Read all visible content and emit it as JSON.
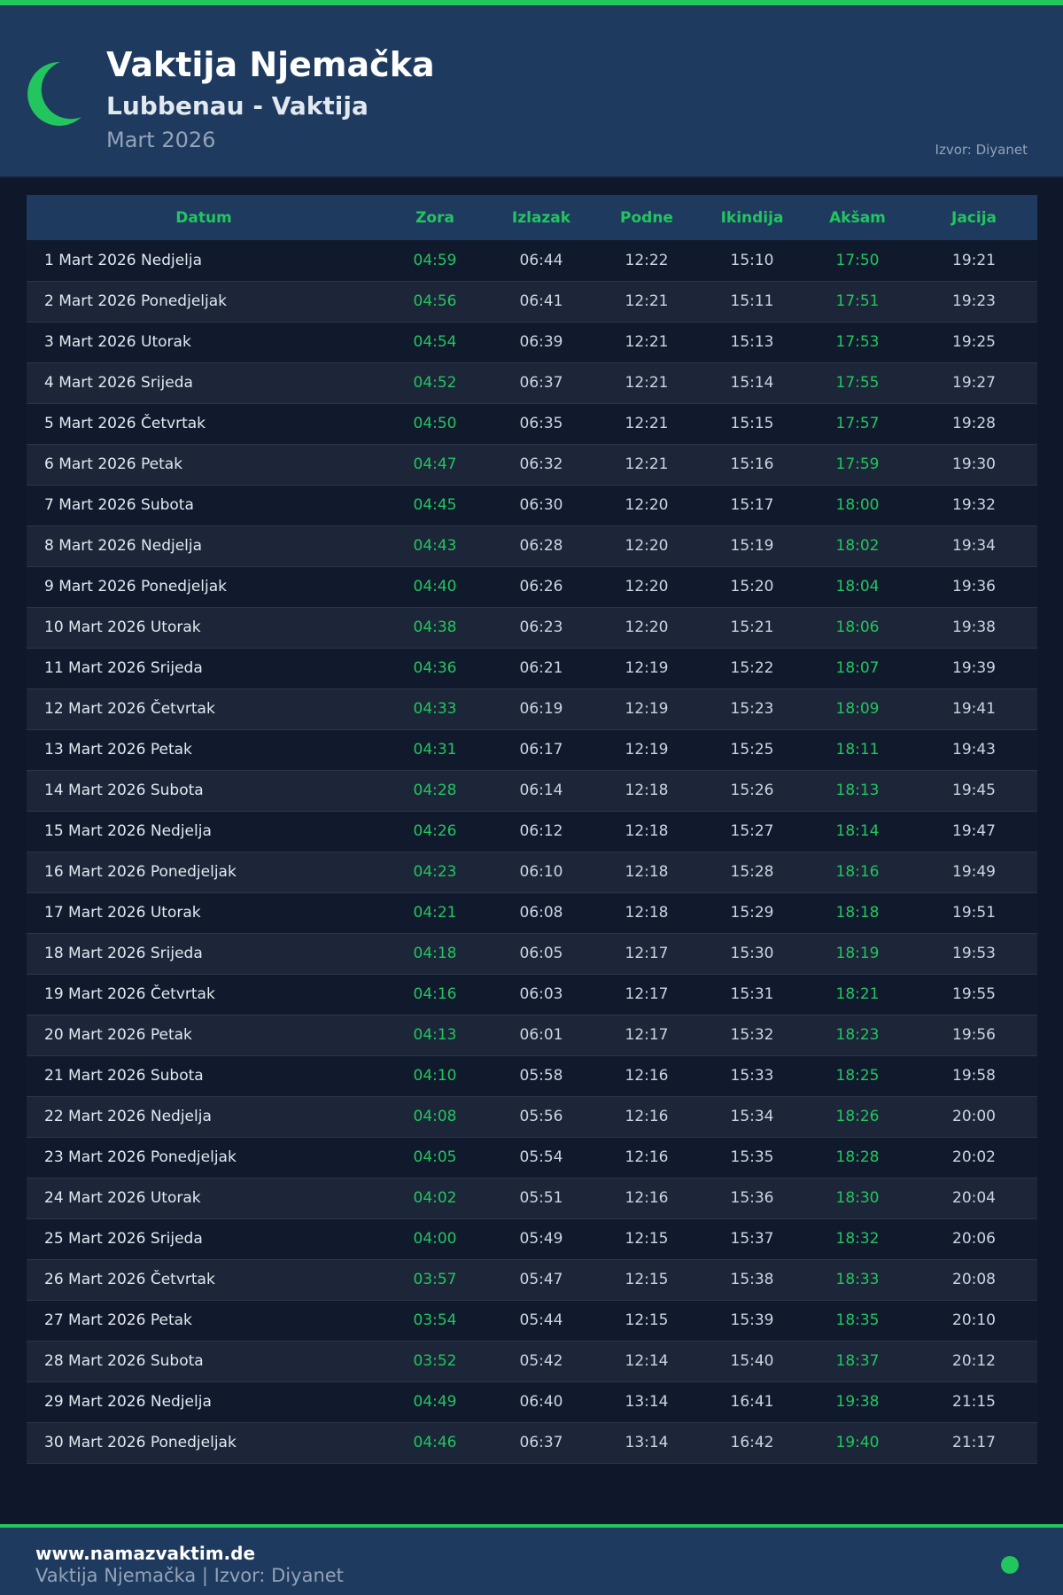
{
  "header": {
    "title": "Vaktija Njemačka",
    "subtitle": "Lubbenau - Vaktija",
    "month": "Mart 2026",
    "source": "Izvor: Diyanet",
    "icon": "crescent-moon-icon"
  },
  "colors": {
    "accent": "#22c55e",
    "header_bg": "#1e3a5f",
    "page_bg": "#0f172a"
  },
  "table": {
    "columns": [
      "Datum",
      "Zora",
      "Izlazak",
      "Podne",
      "Ikindija",
      "Akšam",
      "Jacija"
    ],
    "rows": [
      [
        "1 Mart 2026 Nedjelja",
        "04:59",
        "06:44",
        "12:22",
        "15:10",
        "17:50",
        "19:21"
      ],
      [
        "2 Mart 2026 Ponedjeljak",
        "04:56",
        "06:41",
        "12:21",
        "15:11",
        "17:51",
        "19:23"
      ],
      [
        "3 Mart 2026 Utorak",
        "04:54",
        "06:39",
        "12:21",
        "15:13",
        "17:53",
        "19:25"
      ],
      [
        "4 Mart 2026 Srijeda",
        "04:52",
        "06:37",
        "12:21",
        "15:14",
        "17:55",
        "19:27"
      ],
      [
        "5 Mart 2026 Četvrtak",
        "04:50",
        "06:35",
        "12:21",
        "15:15",
        "17:57",
        "19:28"
      ],
      [
        "6 Mart 2026 Petak",
        "04:47",
        "06:32",
        "12:21",
        "15:16",
        "17:59",
        "19:30"
      ],
      [
        "7 Mart 2026 Subota",
        "04:45",
        "06:30",
        "12:20",
        "15:17",
        "18:00",
        "19:32"
      ],
      [
        "8 Mart 2026 Nedjelja",
        "04:43",
        "06:28",
        "12:20",
        "15:19",
        "18:02",
        "19:34"
      ],
      [
        "9 Mart 2026 Ponedjeljak",
        "04:40",
        "06:26",
        "12:20",
        "15:20",
        "18:04",
        "19:36"
      ],
      [
        "10 Mart 2026 Utorak",
        "04:38",
        "06:23",
        "12:20",
        "15:21",
        "18:06",
        "19:38"
      ],
      [
        "11 Mart 2026 Srijeda",
        "04:36",
        "06:21",
        "12:19",
        "15:22",
        "18:07",
        "19:39"
      ],
      [
        "12 Mart 2026 Četvrtak",
        "04:33",
        "06:19",
        "12:19",
        "15:23",
        "18:09",
        "19:41"
      ],
      [
        "13 Mart 2026 Petak",
        "04:31",
        "06:17",
        "12:19",
        "15:25",
        "18:11",
        "19:43"
      ],
      [
        "14 Mart 2026 Subota",
        "04:28",
        "06:14",
        "12:18",
        "15:26",
        "18:13",
        "19:45"
      ],
      [
        "15 Mart 2026 Nedjelja",
        "04:26",
        "06:12",
        "12:18",
        "15:27",
        "18:14",
        "19:47"
      ],
      [
        "16 Mart 2026 Ponedjeljak",
        "04:23",
        "06:10",
        "12:18",
        "15:28",
        "18:16",
        "19:49"
      ],
      [
        "17 Mart 2026 Utorak",
        "04:21",
        "06:08",
        "12:18",
        "15:29",
        "18:18",
        "19:51"
      ],
      [
        "18 Mart 2026 Srijeda",
        "04:18",
        "06:05",
        "12:17",
        "15:30",
        "18:19",
        "19:53"
      ],
      [
        "19 Mart 2026 Četvrtak",
        "04:16",
        "06:03",
        "12:17",
        "15:31",
        "18:21",
        "19:55"
      ],
      [
        "20 Mart 2026 Petak",
        "04:13",
        "06:01",
        "12:17",
        "15:32",
        "18:23",
        "19:56"
      ],
      [
        "21 Mart 2026 Subota",
        "04:10",
        "05:58",
        "12:16",
        "15:33",
        "18:25",
        "19:58"
      ],
      [
        "22 Mart 2026 Nedjelja",
        "04:08",
        "05:56",
        "12:16",
        "15:34",
        "18:26",
        "20:00"
      ],
      [
        "23 Mart 2026 Ponedjeljak",
        "04:05",
        "05:54",
        "12:16",
        "15:35",
        "18:28",
        "20:02"
      ],
      [
        "24 Mart 2026 Utorak",
        "04:02",
        "05:51",
        "12:16",
        "15:36",
        "18:30",
        "20:04"
      ],
      [
        "25 Mart 2026 Srijeda",
        "04:00",
        "05:49",
        "12:15",
        "15:37",
        "18:32",
        "20:06"
      ],
      [
        "26 Mart 2026 Četvrtak",
        "03:57",
        "05:47",
        "12:15",
        "15:38",
        "18:33",
        "20:08"
      ],
      [
        "27 Mart 2026 Petak",
        "03:54",
        "05:44",
        "12:15",
        "15:39",
        "18:35",
        "20:10"
      ],
      [
        "28 Mart 2026 Subota",
        "03:52",
        "05:42",
        "12:14",
        "15:40",
        "18:37",
        "20:12"
      ],
      [
        "29 Mart 2026 Nedjelja",
        "04:49",
        "06:40",
        "13:14",
        "16:41",
        "19:38",
        "21:15"
      ],
      [
        "30 Mart 2026 Ponedjeljak",
        "04:46",
        "06:37",
        "13:14",
        "16:42",
        "19:40",
        "21:17"
      ]
    ]
  },
  "footer": {
    "site": "www.namazvaktim.de",
    "subtitle": "Vaktija Njemačka | Izvor: Diyanet"
  }
}
